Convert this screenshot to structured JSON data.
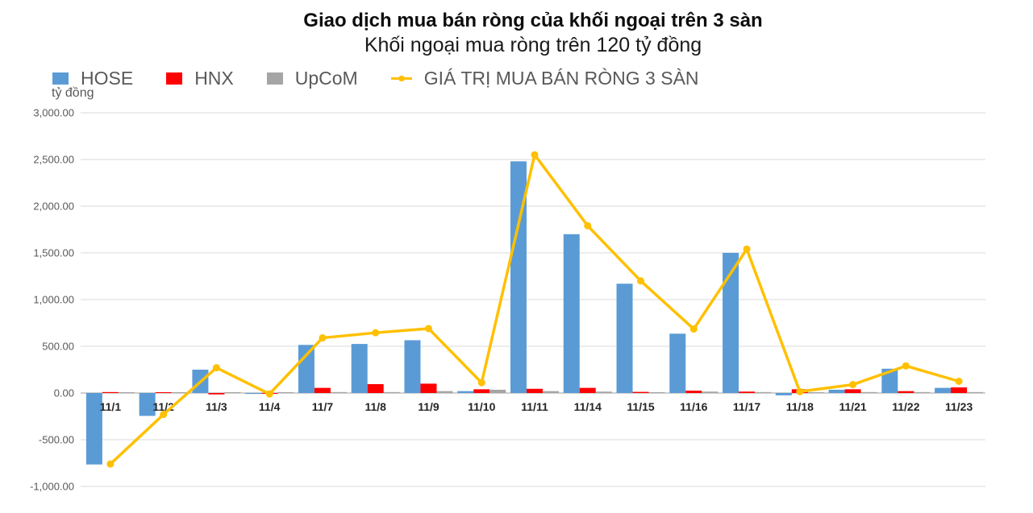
{
  "header": {
    "title": "Giao dịch mua bán ròng của khối ngoại trên 3 sàn",
    "subtitle": "Khối ngoại mua ròng trên 120 tỷ đồng"
  },
  "legend": {
    "items": [
      {
        "label": "HOSE",
        "color": "#5B9BD5",
        "marker": "square"
      },
      {
        "label": "HNX",
        "color": "#FF0000",
        "marker": "square"
      },
      {
        "label": "UpCoM",
        "color": "#A5A5A5",
        "marker": "square"
      },
      {
        "label": "GIÁ TRỊ MUA BÁN RÒNG 3 SÀN",
        "color": "#FFC000",
        "marker": "line"
      }
    ]
  },
  "y_axis": {
    "unit": "tỷ đồng",
    "tick_labels": [
      "3,000.00",
      "2,500.00",
      "2,000.00",
      "1,500.00",
      "1,000.00",
      "500.00",
      "0.00",
      "-500.00",
      "-1,000.00"
    ],
    "tick_values": [
      3000,
      2500,
      2000,
      1500,
      1000,
      500,
      0,
      -500,
      -1000
    ]
  },
  "chart_data": {
    "type": "bar",
    "subtype": "combo-bar-line",
    "title": "Giao dịch mua bán ròng của khối ngoại trên 3 sàn",
    "subtitle": "Khối ngoại mua ròng trên 120 tỷ đồng",
    "xlabel": "",
    "ylabel": "tỷ đồng",
    "ylim": [
      -1000,
      3000
    ],
    "grid": true,
    "legend_position": "top-left",
    "categories": [
      "11/1",
      "11/2",
      "11/3",
      "11/4",
      "11/7",
      "11/8",
      "11/9",
      "11/10",
      "11/11",
      "11/14",
      "11/15",
      "11/16",
      "11/17",
      "11/18",
      "11/21",
      "11/22",
      "11/23"
    ],
    "series": [
      {
        "name": "HOSE",
        "type": "bar",
        "color": "#5B9BD5",
        "values": [
          -765,
          -245,
          250,
          -10,
          515,
          525,
          565,
          20,
          2480,
          1700,
          1170,
          635,
          1500,
          -25,
          35,
          260,
          55
        ]
      },
      {
        "name": "HNX",
        "type": "bar",
        "color": "#FF0000",
        "values": [
          10,
          8,
          -15,
          -8,
          55,
          95,
          100,
          40,
          45,
          55,
          12,
          25,
          15,
          40,
          40,
          20,
          60
        ]
      },
      {
        "name": "UpCoM",
        "type": "bar",
        "color": "#A5A5A5",
        "values": [
          5,
          5,
          5,
          2,
          10,
          10,
          20,
          35,
          20,
          15,
          8,
          15,
          10,
          8,
          10,
          10,
          10
        ]
      },
      {
        "name": "GIÁ TRỊ MUA BÁN RÒNG 3 SÀN",
        "type": "line",
        "color": "#FFC000",
        "values": [
          -760,
          -230,
          270,
          -10,
          590,
          645,
          690,
          110,
          2550,
          1790,
          1200,
          685,
          1540,
          15,
          90,
          290,
          125
        ]
      }
    ],
    "gridline_color": "#D9D9D9",
    "zero_line_color": "#BFBFBF",
    "tick_label_color": "#595959",
    "x_label_color": "#262626"
  }
}
